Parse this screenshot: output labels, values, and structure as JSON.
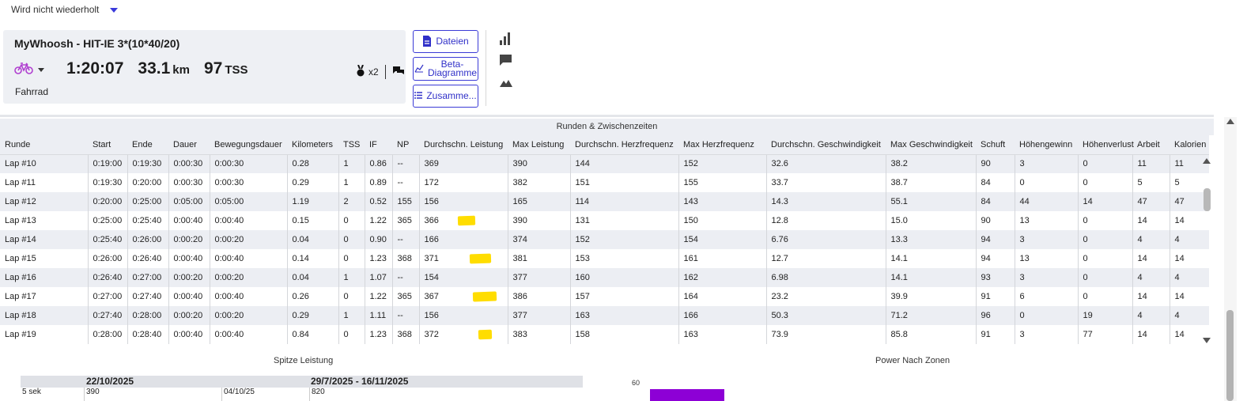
{
  "topbar": {
    "repeat_label": "Wird nicht wiederholt"
  },
  "activity": {
    "title": "MyWhoosh - HIT-IE 3*(10*40/20)",
    "duration": "1:20:07",
    "distance_value": "33.1",
    "distance_unit": "km",
    "tss_value": "97",
    "tss_unit": "TSS",
    "kudos_count": "x2",
    "sport": "Fahrrad",
    "icons": [
      "bike-icon",
      "chevron-down-icon",
      "kudos-icon",
      "comments-icon"
    ]
  },
  "actions": {
    "files_label": "Dateien",
    "beta_label_line1": "Beta-",
    "beta_label_line2": "Diagramme",
    "summary_label": "Zusamme..."
  },
  "laps": {
    "caption": "Runden & Zwischenzeiten",
    "columns": [
      "Runde",
      "Start",
      "Ende",
      "Dauer",
      "Bewegungsdauer",
      "Kilometers",
      "TSS",
      "IF",
      "NP",
      "Durchschn. Leistung",
      "Max Leistung",
      "Durchschn. Herzfrequenz",
      "Max Herzfrequenz",
      "Durchschn. Geschwindigkeit",
      "Max Geschwindigkeit",
      "Schuft",
      "Höhengewinn",
      "Höhenverlust",
      "Arbeit",
      "Kalorien"
    ],
    "rows": [
      [
        "Lap #10",
        "0:19:00",
        "0:19:30",
        "0:00:30",
        "0:00:30",
        "0.28",
        "1",
        "0.86",
        "--",
        "369",
        "390",
        "144",
        "152",
        "32.6",
        "38.2",
        "90",
        "3",
        "0",
        "11",
        "11"
      ],
      [
        "Lap #11",
        "0:19:30",
        "0:20:00",
        "0:00:30",
        "0:00:30",
        "0.29",
        "1",
        "0.89",
        "--",
        "172",
        "382",
        "151",
        "155",
        "33.7",
        "38.7",
        "84",
        "0",
        "0",
        "5",
        "5"
      ],
      [
        "Lap #12",
        "0:20:00",
        "0:25:00",
        "0:05:00",
        "0:05:00",
        "1.19",
        "2",
        "0.52",
        "155",
        "156",
        "165",
        "114",
        "143",
        "14.3",
        "55.1",
        "84",
        "44",
        "14",
        "47",
        "47"
      ],
      [
        "Lap #13",
        "0:25:00",
        "0:25:40",
        "0:00:40",
        "0:00:40",
        "0.15",
        "0",
        "1.22",
        "365",
        "366",
        "390",
        "131",
        "150",
        "12.8",
        "15.0",
        "90",
        "13",
        "0",
        "14",
        "14"
      ],
      [
        "Lap #14",
        "0:25:40",
        "0:26:00",
        "0:00:20",
        "0:00:20",
        "0.04",
        "0",
        "0.90",
        "--",
        "166",
        "374",
        "152",
        "154",
        "6.76",
        "13.3",
        "94",
        "3",
        "0",
        "4",
        "4"
      ],
      [
        "Lap #15",
        "0:26:00",
        "0:26:40",
        "0:00:40",
        "0:00:40",
        "0.14",
        "0",
        "1.23",
        "368",
        "371",
        "381",
        "153",
        "161",
        "12.7",
        "14.1",
        "94",
        "13",
        "0",
        "14",
        "14"
      ],
      [
        "Lap #16",
        "0:26:40",
        "0:27:00",
        "0:00:20",
        "0:00:20",
        "0.04",
        "1",
        "1.07",
        "--",
        "154",
        "377",
        "160",
        "162",
        "6.98",
        "14.1",
        "93",
        "3",
        "0",
        "4",
        "4"
      ],
      [
        "Lap #17",
        "0:27:00",
        "0:27:40",
        "0:00:40",
        "0:00:40",
        "0.26",
        "0",
        "1.22",
        "365",
        "367",
        "386",
        "157",
        "164",
        "23.2",
        "39.9",
        "91",
        "6",
        "0",
        "14",
        "14"
      ],
      [
        "Lap #18",
        "0:27:40",
        "0:28:00",
        "0:00:20",
        "0:00:20",
        "0.29",
        "1",
        "1.11",
        "--",
        "156",
        "377",
        "163",
        "166",
        "50.3",
        "71.2",
        "96",
        "0",
        "19",
        "4",
        "4"
      ],
      [
        "Lap #19",
        "0:28:00",
        "0:28:40",
        "0:00:40",
        "0:00:40",
        "0.84",
        "0",
        "1.23",
        "368",
        "372",
        "383",
        "158",
        "163",
        "73.9",
        "85.8",
        "91",
        "3",
        "77",
        "14",
        "14"
      ]
    ]
  },
  "highlight_color": "#ffdd00",
  "peak": {
    "title": "Spitze Leistung",
    "col_date": "22/10/2025",
    "col_range": "29/7/2025 - 16/11/2025",
    "row_label": "5 sek",
    "row_value": "390",
    "row_date": "04/10/25",
    "row_range_value": "820"
  },
  "zones": {
    "title": "Power Nach Zonen",
    "axis_tick": "60",
    "bar_color": "#8d00d6"
  }
}
